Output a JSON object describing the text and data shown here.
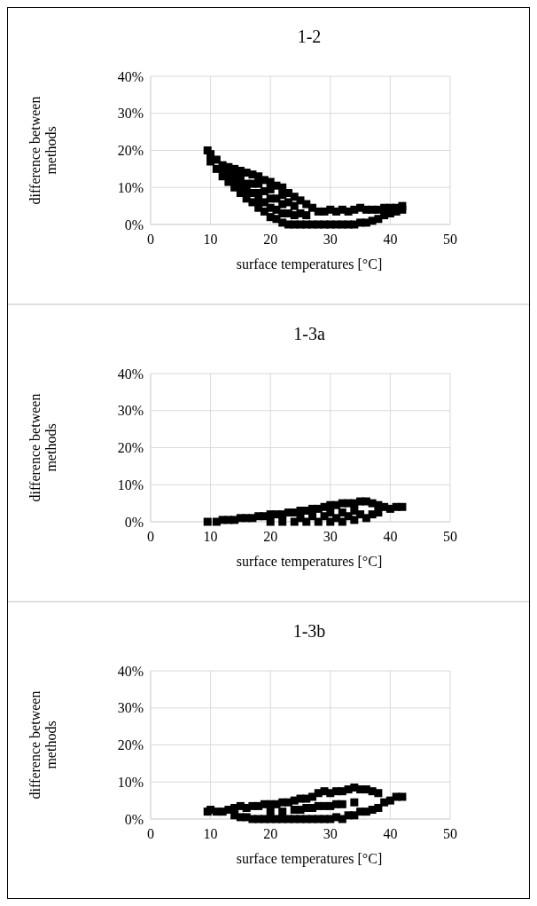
{
  "chart_data": [
    {
      "type": "scatter",
      "title": "1-2",
      "xlabel": "surface temperatures [°C]",
      "ylabel": "difference between methods",
      "xlim": [
        0,
        50
      ],
      "xticks": [
        0,
        10,
        20,
        30,
        40,
        50
      ],
      "ylim": [
        0,
        40
      ],
      "yticks": [
        {
          "value": 0,
          "label": "0%"
        },
        {
          "value": 10,
          "label": "10%"
        },
        {
          "value": 20,
          "label": "20%"
        },
        {
          "value": 30,
          "label": "30%"
        },
        {
          "value": 40,
          "label": "40%"
        }
      ],
      "grid": true,
      "marker": "square",
      "series": [
        {
          "color": "#000000",
          "x": [
            9.5,
            10,
            10,
            11,
            11,
            12,
            12,
            12,
            13,
            13,
            13,
            14,
            14,
            14,
            14,
            15,
            15,
            15,
            15,
            16,
            16,
            16,
            16,
            17,
            17,
            17,
            17,
            18,
            18,
            18,
            18,
            18,
            19,
            19,
            19,
            19,
            20,
            20,
            20,
            20,
            20,
            21,
            21,
            21,
            21,
            22,
            22,
            22,
            22,
            22,
            23,
            23,
            23,
            23,
            24,
            24,
            24,
            24,
            25,
            25,
            25,
            26,
            26,
            26,
            27,
            27,
            28,
            28,
            29,
            29,
            30,
            30,
            31,
            31,
            32,
            32,
            33,
            33,
            34,
            34,
            35,
            35,
            36,
            36,
            37,
            37,
            38,
            38,
            39,
            39,
            40,
            40,
            41,
            41,
            42,
            42
          ],
          "values": [
            20,
            17,
            19,
            15,
            17.5,
            13,
            15,
            16,
            11.5,
            13.5,
            15.5,
            10,
            12,
            14,
            15,
            8.5,
            10.5,
            12.5,
            14.5,
            7,
            9,
            11,
            14,
            6,
            8.5,
            11,
            13.5,
            4.5,
            6.5,
            8.5,
            11,
            13,
            3.5,
            6,
            9,
            12,
            2,
            4.5,
            7,
            9.5,
            11.5,
            1.5,
            4,
            7,
            10.5,
            0.5,
            3,
            5.5,
            8,
            10,
            0,
            3,
            6,
            8.5,
            0,
            2.5,
            5,
            7.5,
            0,
            3,
            6.5,
            0,
            2.5,
            5.5,
            0,
            4.5,
            0,
            3.5,
            0,
            3.5,
            0,
            4,
            0,
            3.5,
            0,
            4,
            0,
            3.5,
            0,
            4,
            0.5,
            4.5,
            0.5,
            4,
            1,
            4,
            1.5,
            4,
            2.5,
            4.5,
            3,
            4.5,
            3.5,
            4.5,
            4,
            5
          ]
        }
      ]
    },
    {
      "type": "scatter",
      "title": "1-3a",
      "xlabel": "surface temperatures [°C]",
      "ylabel": "difference between methods",
      "xlim": [
        0,
        50
      ],
      "xticks": [
        0,
        10,
        20,
        30,
        40,
        50
      ],
      "ylim": [
        0,
        40
      ],
      "yticks": [
        {
          "value": 0,
          "label": "0%"
        },
        {
          "value": 10,
          "label": "10%"
        },
        {
          "value": 20,
          "label": "20%"
        },
        {
          "value": 30,
          "label": "30%"
        },
        {
          "value": 40,
          "label": "40%"
        }
      ],
      "grid": true,
      "marker": "square",
      "series": [
        {
          "color": "#000000",
          "x": [
            9.5,
            11,
            12,
            13,
            14,
            15,
            16,
            17,
            18,
            19,
            20,
            20,
            21,
            22,
            22,
            23,
            24,
            24,
            25,
            25,
            26,
            26,
            27,
            27,
            28,
            28,
            29,
            29,
            30,
            30,
            30,
            31,
            31,
            32,
            32,
            32,
            33,
            33,
            34,
            34,
            34,
            35,
            35,
            36,
            36,
            37,
            37,
            38,
            38,
            39,
            40,
            41,
            42
          ],
          "values": [
            0,
            0,
            0.5,
            0.5,
            0.5,
            1,
            1,
            1,
            1.5,
            1.5,
            0,
            2,
            2,
            0,
            2,
            2.5,
            0,
            2.5,
            1,
            3,
            0,
            3,
            1.5,
            3.5,
            0,
            3.5,
            1.5,
            4,
            0,
            2.5,
            4.5,
            1,
            4.5,
            0,
            2.5,
            5,
            1.5,
            5,
            0.5,
            3,
            5,
            2,
            5.5,
            1,
            5.5,
            2,
            5,
            2.5,
            4.5,
            4,
            3.5,
            4,
            4
          ]
        }
      ]
    },
    {
      "type": "scatter",
      "title": "1-3b",
      "xlabel": "surface temperatures [°C]",
      "ylabel": "difference between methods",
      "xlim": [
        0,
        50
      ],
      "xticks": [
        0,
        10,
        20,
        30,
        40,
        50
      ],
      "ylim": [
        0,
        40
      ],
      "yticks": [
        {
          "value": 0,
          "label": "0%"
        },
        {
          "value": 10,
          "label": "10%"
        },
        {
          "value": 20,
          "label": "20%"
        },
        {
          "value": 30,
          "label": "30%"
        },
        {
          "value": 40,
          "label": "40%"
        }
      ],
      "grid": true,
      "marker": "square",
      "series": [
        {
          "color": "#000000",
          "x": [
            9.5,
            10,
            11,
            12,
            13,
            14,
            14,
            15,
            15,
            16,
            16,
            17,
            17,
            18,
            18,
            19,
            19,
            20,
            20,
            20,
            21,
            21,
            22,
            22,
            22,
            23,
            23,
            24,
            24,
            24,
            25,
            25,
            25,
            26,
            26,
            26,
            27,
            27,
            27,
            28,
            28,
            28,
            29,
            29,
            29,
            30,
            30,
            30,
            31,
            31,
            31,
            32,
            32,
            32,
            33,
            33,
            34,
            34,
            34,
            35,
            35,
            36,
            36,
            37,
            37,
            38,
            38,
            39,
            40,
            41,
            42
          ],
          "values": [
            2,
            2.5,
            2,
            2,
            2.5,
            1,
            3,
            0.5,
            3.5,
            0.5,
            3,
            0,
            3.5,
            0,
            3.5,
            0,
            4,
            0,
            2,
            4,
            0,
            4,
            0,
            2,
            4.5,
            0,
            4.5,
            0,
            2.5,
            5,
            0,
            2.5,
            5.5,
            0,
            3,
            5.5,
            0,
            3,
            6,
            0,
            3.5,
            7,
            0,
            3.5,
            7.5,
            0,
            3.5,
            7,
            0.5,
            4,
            7.5,
            0,
            4,
            7.5,
            1,
            8,
            1,
            4.5,
            8.5,
            2,
            8,
            2,
            8,
            2.5,
            7.5,
            3,
            7,
            4.5,
            5,
            6,
            6
          ]
        }
      ]
    }
  ]
}
